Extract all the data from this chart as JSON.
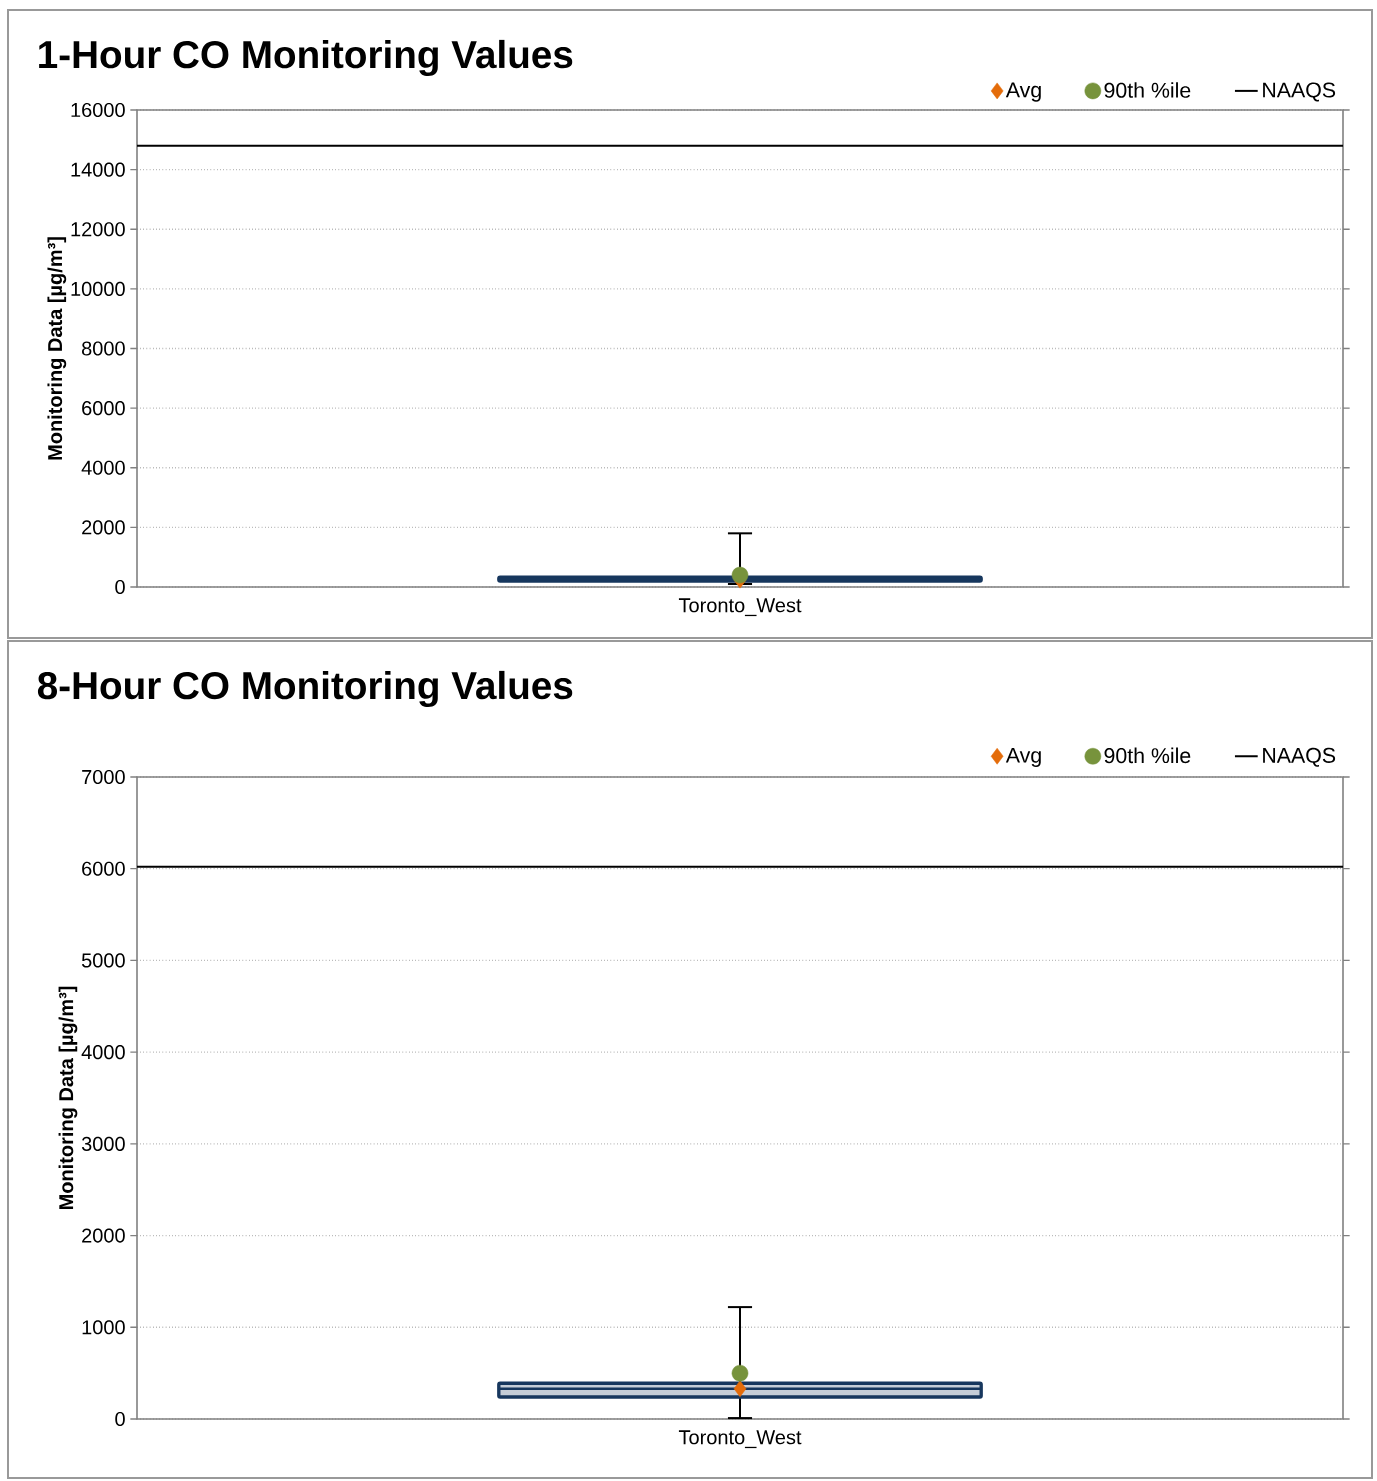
{
  "chart_data": [
    {
      "type": "box",
      "title": "1-Hour CO Monitoring Values",
      "ylabel": "Monitoring Data [µg/m³]",
      "categories": [
        "Toronto_West"
      ],
      "ylim": [
        0,
        16000
      ],
      "yticks": [
        0,
        2000,
        4000,
        6000,
        8000,
        10000,
        12000,
        14000,
        16000
      ],
      "grid": "y",
      "legend": "top right",
      "series": [
        {
          "color": "#17375e",
          "boxes": [
            {
              "low": 100,
              "q1": 200,
              "median": 280,
              "q3": 330,
              "high": 1800
            }
          ]
        },
        {
          "type": "scatter",
          "name": "Avg",
          "color": "#e46c0a",
          "marker": "diamond",
          "x": [
            "Toronto_West"
          ],
          "values": [
            230
          ]
        },
        {
          "type": "scatter",
          "name": "90th %ile",
          "color": "#77933c",
          "marker": "circle",
          "x": [
            "Toronto_West"
          ],
          "values": [
            400
          ]
        }
      ],
      "ref_lines": [
        {
          "axis": "y",
          "value": 14800,
          "label": "NAAQS",
          "color": "#000000"
        }
      ]
    },
    {
      "type": "box",
      "title": "8-Hour CO Monitoring Values",
      "ylabel": "Monitoring Data [µg/m³]",
      "categories": [
        "Toronto_West"
      ],
      "ylim": [
        0,
        7000
      ],
      "yticks": [
        0,
        1000,
        2000,
        3000,
        4000,
        5000,
        6000,
        7000
      ],
      "grid": "y",
      "legend": "top right",
      "series": [
        {
          "color": "#17375e",
          "boxes": [
            {
              "low": 10,
              "q1": 240,
              "median": 330,
              "q3": 390,
              "high": 1220
            }
          ]
        },
        {
          "type": "scatter",
          "name": "Avg",
          "color": "#e46c0a",
          "marker": "diamond",
          "x": [
            "Toronto_West"
          ],
          "values": [
            330
          ]
        },
        {
          "type": "scatter",
          "name": "90th %ile",
          "color": "#77933c",
          "marker": "circle",
          "x": [
            "Toronto_West"
          ],
          "values": [
            500
          ]
        }
      ],
      "ref_lines": [
        {
          "axis": "y",
          "value": 6020,
          "label": "NAAQS",
          "color": "#000000"
        }
      ]
    }
  ]
}
